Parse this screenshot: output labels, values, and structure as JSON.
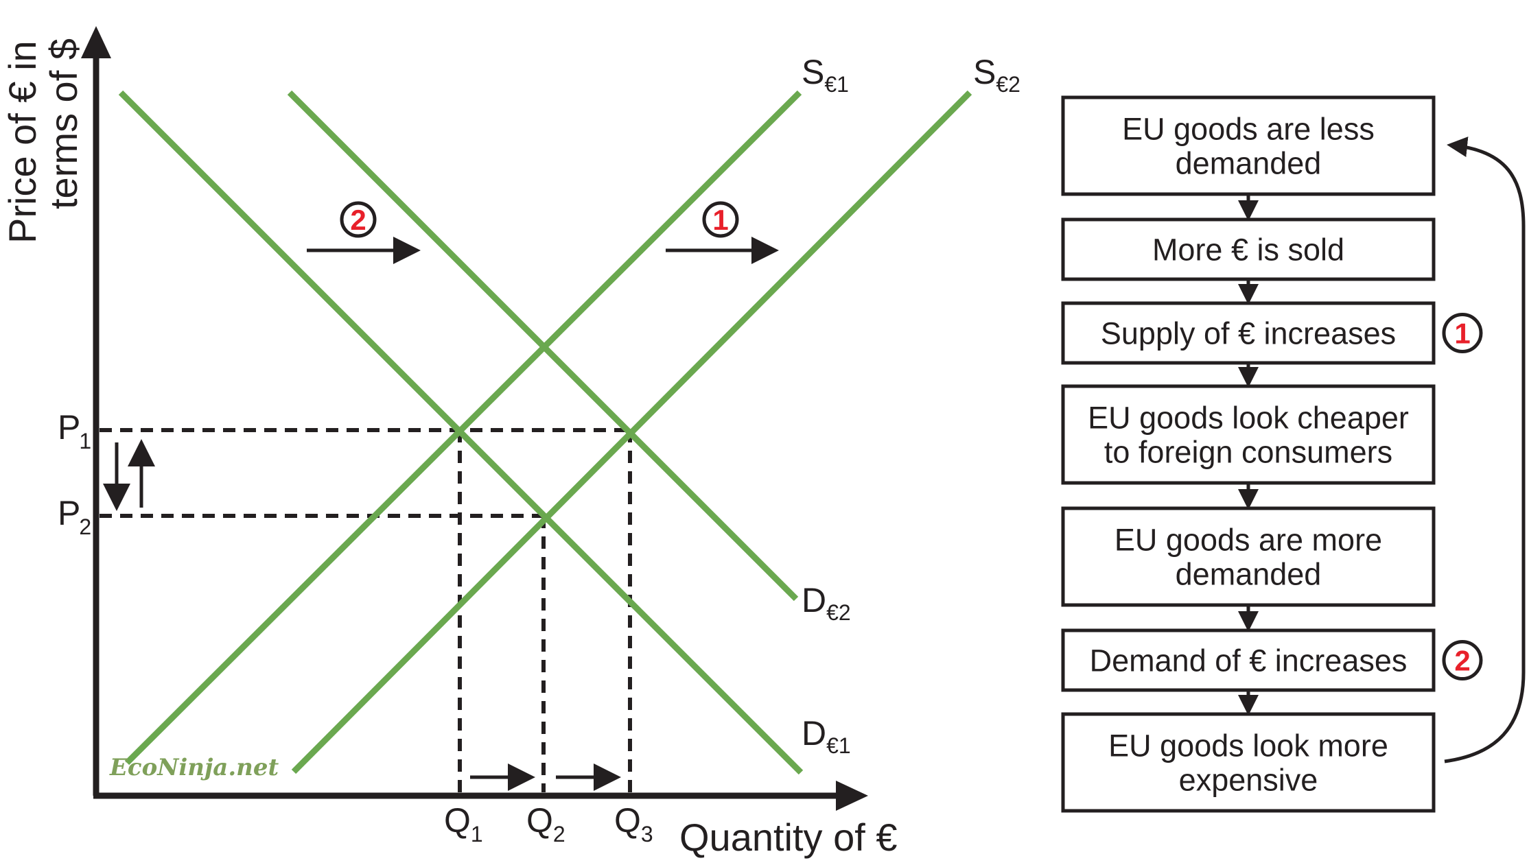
{
  "axes": {
    "y_title_line1": "Price of € in",
    "y_title_line2": "terms of $",
    "x_title": "Quantity of €"
  },
  "curve_labels": {
    "s1": {
      "main": "S",
      "sub": "€1"
    },
    "s2": {
      "main": "S",
      "sub": "€2"
    },
    "d1": {
      "main": "D",
      "sub": "€1"
    },
    "d2": {
      "main": "D",
      "sub": "€2"
    }
  },
  "price_labels": [
    {
      "main": "P",
      "sub": "1"
    },
    {
      "main": "P",
      "sub": "2"
    }
  ],
  "quantity_labels": [
    {
      "main": "Q",
      "sub": "1"
    },
    {
      "main": "Q",
      "sub": "2"
    },
    {
      "main": "Q",
      "sub": "3"
    }
  ],
  "shift_badges": {
    "supply": "1",
    "demand": "2"
  },
  "watermark": "EcoNinja.net",
  "flow_boxes": [
    {
      "lines": [
        "EU goods are less",
        "demanded"
      ]
    },
    {
      "lines": [
        "More € is sold"
      ]
    },
    {
      "lines": [
        "Supply of € increases"
      ],
      "badge": "1"
    },
    {
      "lines": [
        "EU goods look cheaper",
        "to foreign consumers"
      ]
    },
    {
      "lines": [
        "EU goods are more",
        "demanded"
      ]
    },
    {
      "lines": [
        "Demand of € increases"
      ],
      "badge": "2"
    },
    {
      "lines": [
        "EU goods look more",
        "expensive"
      ]
    }
  ],
  "colors": {
    "curve": "#6aa84f",
    "ink": "#231f20",
    "badge_number": "#e8202a"
  }
}
